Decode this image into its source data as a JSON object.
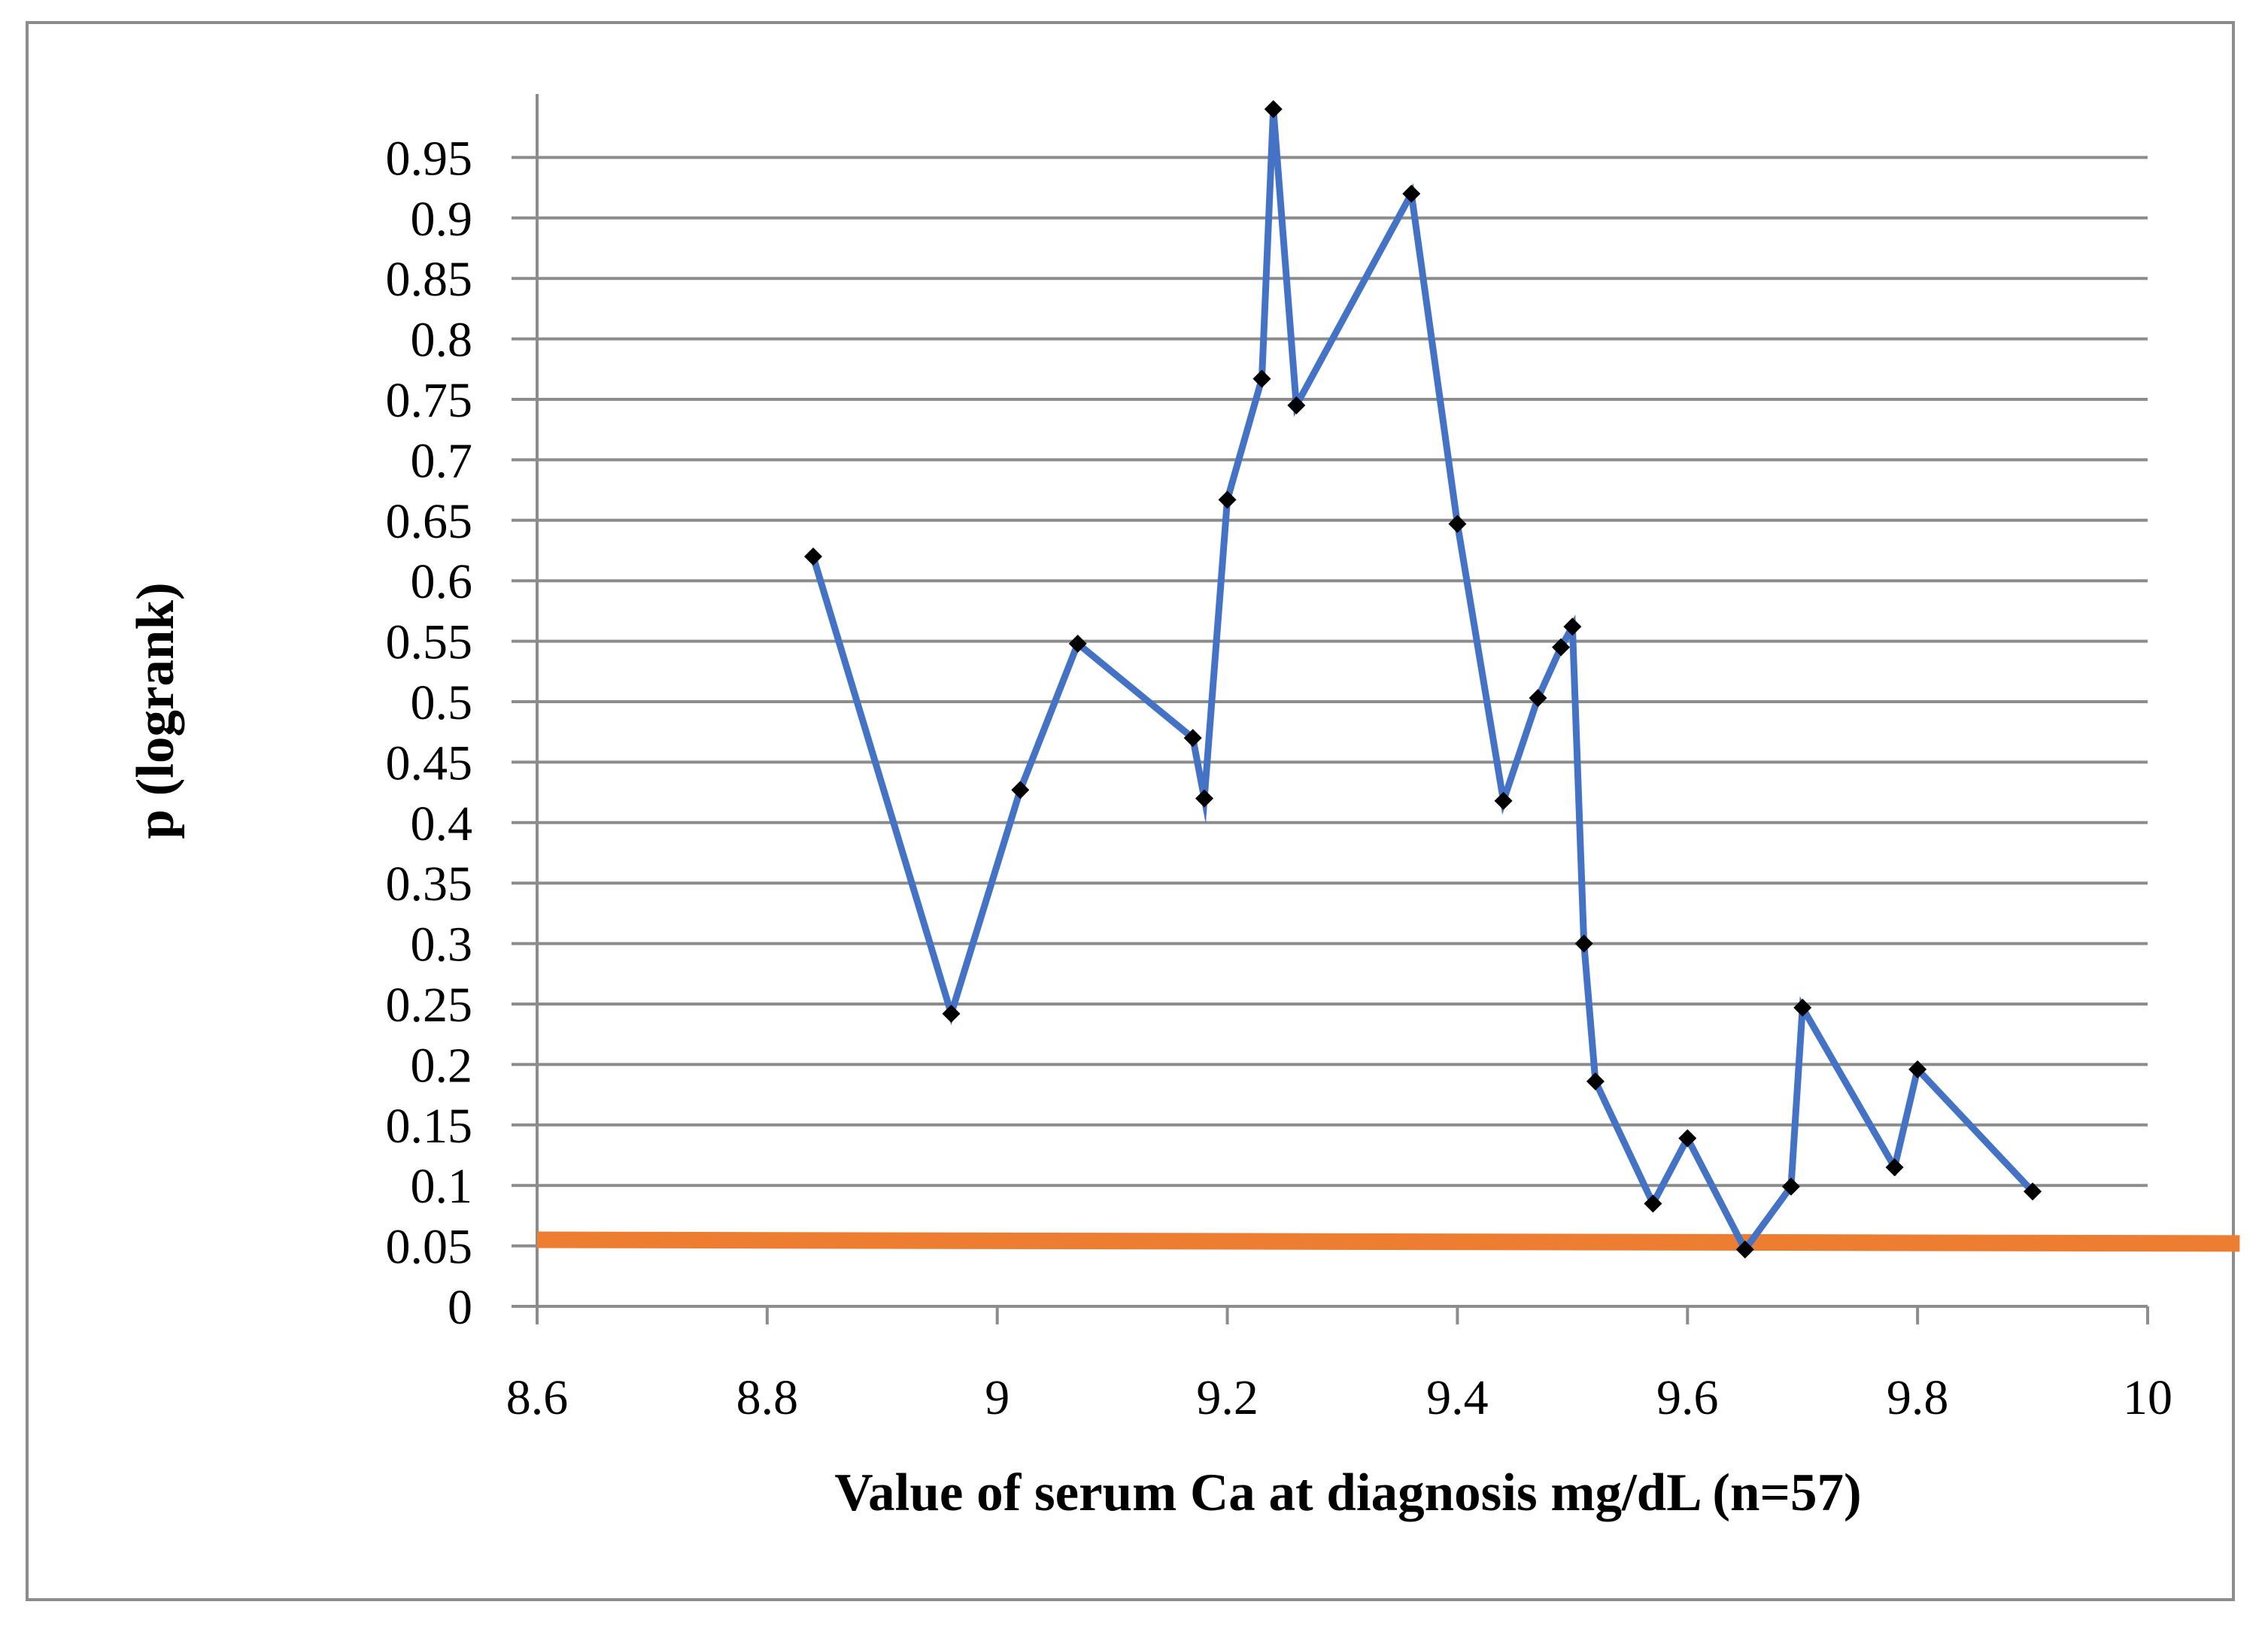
{
  "chart_data": {
    "type": "line",
    "xlabel": "Value of serum Ca at diagnosis mg/dL (n=57)",
    "ylabel": "p (logrank)",
    "xlim": [
      8.6,
      10
    ],
    "ylim": [
      0,
      1
    ],
    "x_ticks": [
      "8.6",
      "8.8",
      "9",
      "9.2",
      "9.4",
      "9.6",
      "9.8",
      "10"
    ],
    "y_ticks": [
      "0",
      "0.05",
      "0.1",
      "0.15",
      "0.2",
      "0.25",
      "0.3",
      "0.35",
      "0.4",
      "0.45",
      "0.5",
      "0.55",
      "0.6",
      "0.65",
      "0.7",
      "0.75",
      "0.8",
      "0.85",
      "0.9",
      "0.95"
    ],
    "grid": "horizontal",
    "legend": "none",
    "series": [
      {
        "color": "#4472c4",
        "marker_color": "#000000",
        "x": [
          8.84,
          8.96,
          9.02,
          9.07,
          9.17,
          9.18,
          9.2,
          9.23,
          9.24,
          9.26,
          9.36,
          9.4,
          9.44,
          9.47,
          9.49,
          9.5,
          9.51,
          9.52,
          9.57,
          9.6,
          9.65,
          9.69,
          9.7,
          9.78,
          9.8,
          9.9
        ],
        "y": [
          0.62,
          0.242,
          0.427,
          0.548,
          0.47,
          0.42,
          0.667,
          0.767,
          0.99,
          0.745,
          0.92,
          0.647,
          0.418,
          0.503,
          0.545,
          0.562,
          0.3,
          0.186,
          0.085,
          0.139,
          0.047,
          0.099,
          0.247,
          0.115,
          0.196,
          0.095
        ]
      }
    ],
    "reference_line": {
      "color": "#ed7d31",
      "x": [
        8.6,
        10.08
      ],
      "y": [
        0.055,
        0.052
      ]
    }
  }
}
